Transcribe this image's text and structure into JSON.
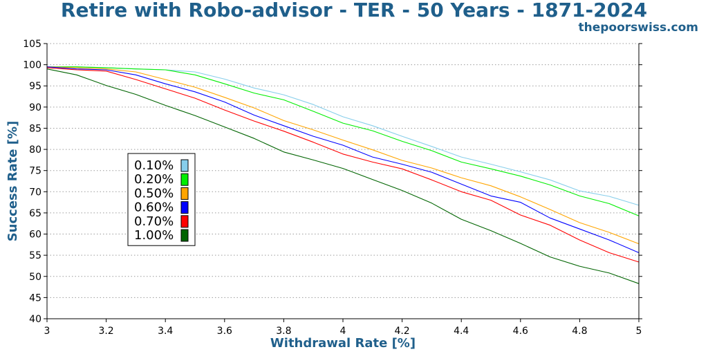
{
  "header": {
    "title": "Retire with Robo-advisor - TER - 50 Years - 1871-2024",
    "site": "thepoorswiss.com"
  },
  "chart_data": {
    "type": "line",
    "title": "Retire with Robo-advisor - TER - 50 Years - 1871-2024",
    "xlabel": "Withdrawal Rate [%]",
    "ylabel": "Success Rate [%]",
    "xlim": [
      3,
      5
    ],
    "ylim": [
      40,
      105
    ],
    "x_ticks": [
      3,
      3.2,
      3.4,
      3.6,
      3.8,
      4,
      4.2,
      4.4,
      4.6,
      4.8,
      5
    ],
    "x_tick_labels": [
      "3",
      "3.2",
      "3.4",
      "3.6",
      "3.8",
      "4",
      "4.2",
      "4.4",
      "4.6",
      "4.8",
      "5"
    ],
    "y_ticks": [
      40,
      45,
      50,
      55,
      60,
      65,
      70,
      75,
      80,
      85,
      90,
      95,
      100,
      105
    ],
    "y_tick_labels": [
      "40",
      "45",
      "50",
      "55",
      "60",
      "65",
      "70",
      "75",
      "80",
      "85",
      "90",
      "95",
      "100",
      "105"
    ],
    "grid": "horizontal dotted",
    "legend_position": "inside left",
    "x": [
      3,
      3.1,
      3.2,
      3.3,
      3.4,
      3.5,
      3.6,
      3.7,
      3.8,
      3.9,
      4,
      4.1,
      4.2,
      4.3,
      4.4,
      4.5,
      4.6,
      4.7,
      4.8,
      4.9,
      5
    ],
    "series": [
      {
        "name": "0.10%",
        "color": "#87ceeb",
        "values": [
          99.5,
          99.5,
          99.3,
          99.0,
          98.8,
          98.3,
          96.6,
          94.5,
          92.9,
          90.6,
          87.7,
          85.6,
          83.1,
          80.7,
          78.2,
          76.5,
          74.7,
          72.8,
          70.2,
          68.9,
          66.8
        ]
      },
      {
        "name": "0.20%",
        "color": "#00ee00",
        "values": [
          99.5,
          99.5,
          99.3,
          99.0,
          98.8,
          97.6,
          95.5,
          93.3,
          91.7,
          89.0,
          86.2,
          84.4,
          81.9,
          79.7,
          77.0,
          75.4,
          73.7,
          71.6,
          69.0,
          67.2,
          64.3
        ]
      },
      {
        "name": "0.50%",
        "color": "#ffa500",
        "values": [
          99.5,
          99.3,
          99.0,
          98.3,
          96.5,
          94.7,
          92.3,
          89.8,
          86.8,
          84.6,
          82.2,
          79.9,
          77.4,
          75.6,
          73.3,
          71.4,
          68.8,
          65.8,
          62.7,
          60.4,
          57.7
        ]
      },
      {
        "name": "0.60%",
        "color": "#0000ff",
        "values": [
          99.5,
          99.0,
          98.8,
          97.6,
          95.5,
          93.6,
          91.2,
          88.1,
          85.6,
          83.1,
          81.0,
          78.2,
          76.5,
          74.6,
          71.8,
          69.0,
          67.5,
          63.8,
          61.2,
          58.6,
          55.6
        ]
      },
      {
        "name": "0.70%",
        "color": "#ff0000",
        "values": [
          99.3,
          98.8,
          98.5,
          96.5,
          94.3,
          92.1,
          89.3,
          86.7,
          84.3,
          81.7,
          78.9,
          77.0,
          75.4,
          72.8,
          70.0,
          68.0,
          64.5,
          62.1,
          58.6,
          55.6,
          53.4
        ]
      },
      {
        "name": "1.00%",
        "color": "#006400",
        "values": [
          99.0,
          97.6,
          95.1,
          93.0,
          90.4,
          88.0,
          85.3,
          82.6,
          79.4,
          77.5,
          75.5,
          72.9,
          70.3,
          67.3,
          63.5,
          60.8,
          57.8,
          54.6,
          52.4,
          50.8,
          48.3
        ]
      }
    ]
  }
}
